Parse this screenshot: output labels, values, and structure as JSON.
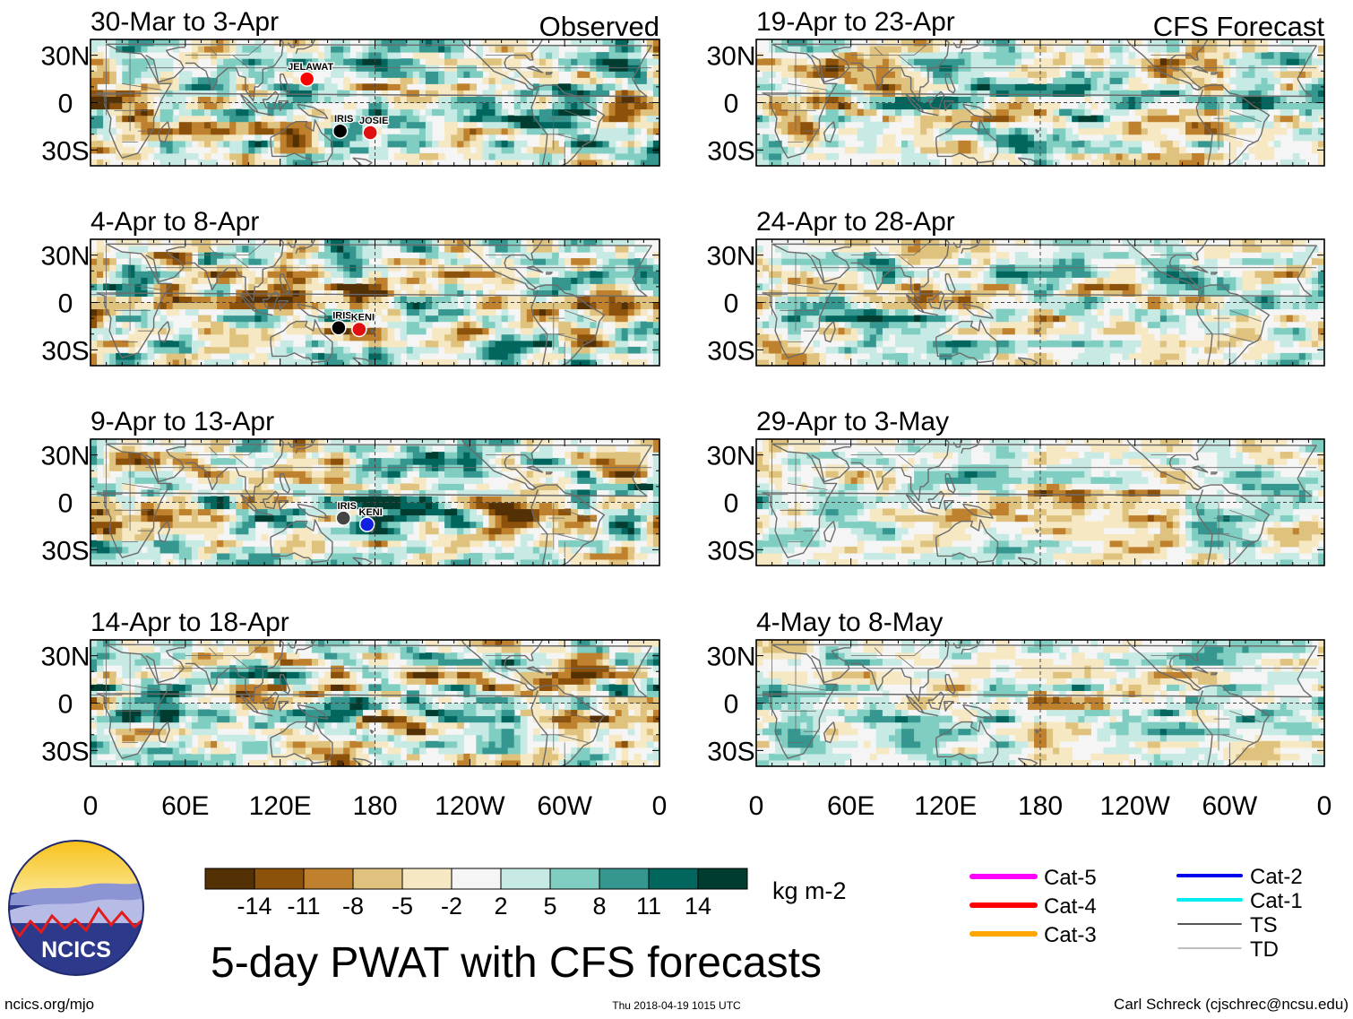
{
  "chart_data": {
    "type": "heatmap",
    "title": "5-day PWAT with CFS forecasts",
    "units": "kg m-2",
    "xticks": [
      "0",
      "60E",
      "120E",
      "180",
      "120W",
      "60W",
      "0"
    ],
    "yticks": [
      "30N",
      "0",
      "30S"
    ],
    "xlim": [
      0,
      360
    ],
    "ylim": [
      -40,
      40
    ],
    "panels": [
      {
        "period": "30-Mar to 3-Apr",
        "tag": "Observed",
        "storms": [
          {
            "name": "JELAWAT",
            "lon": 137,
            "lat": 15,
            "color": "#ff0000"
          },
          {
            "name": "IRIS",
            "lon": 158,
            "lat": -18,
            "color": "#000000"
          },
          {
            "name": "JOSIE",
            "lon": 177,
            "lat": -19,
            "color": "#e01010"
          }
        ]
      },
      {
        "period": "4-Apr to 8-Apr",
        "tag": "",
        "storms": [
          {
            "name": "IRIS",
            "lon": 157,
            "lat": -16,
            "color": "#000000"
          },
          {
            "name": "KENI",
            "lon": 170,
            "lat": -17,
            "color": "#e01010"
          }
        ]
      },
      {
        "period": "9-Apr to 13-Apr",
        "tag": "",
        "storms": [
          {
            "name": "IRIS",
            "lon": 160,
            "lat": -10,
            "color": "#444444"
          },
          {
            "name": "KENI",
            "lon": 175,
            "lat": -14,
            "color": "#1020e0"
          }
        ]
      },
      {
        "period": "14-Apr to 18-Apr",
        "tag": "",
        "storms": []
      },
      {
        "period": "19-Apr to 23-Apr",
        "tag": "CFS Forecast",
        "storms": []
      },
      {
        "period": "24-Apr to 28-Apr",
        "tag": "",
        "storms": []
      },
      {
        "period": "29-Apr to 3-May",
        "tag": "",
        "storms": []
      },
      {
        "period": "4-May to 8-May",
        "tag": "",
        "storms": []
      }
    ],
    "colorbar": {
      "colors": [
        "#543005",
        "#8c510a",
        "#bf812d",
        "#dfc27d",
        "#f6e8c3",
        "#f5f5f5",
        "#c7eae5",
        "#80cdc1",
        "#35978f",
        "#01665e",
        "#003c30"
      ],
      "labels": [
        "-14",
        "-11",
        "-8",
        "-5",
        "-2",
        "2",
        "5",
        "8",
        "11",
        "14"
      ]
    },
    "legend": [
      {
        "label": "Cat-5",
        "color": "#ff00ff"
      },
      {
        "label": "Cat-4",
        "color": "#ff0000"
      },
      {
        "label": "Cat-3",
        "color": "#ffa500"
      },
      {
        "label": "Cat-2",
        "color": "#0000ee"
      },
      {
        "label": "Cat-1",
        "color": "#00eeee"
      },
      {
        "label": "TS",
        "color": "#555555"
      },
      {
        "label": "TD",
        "color": "#aaaaaa"
      }
    ]
  },
  "logo_text": "NCICS",
  "footer": {
    "left": "ncics.org/mjo",
    "center": "Thu 2018-04-19 1015 UTC",
    "right": "Carl Schreck (cjschrec@ncsu.edu)"
  }
}
